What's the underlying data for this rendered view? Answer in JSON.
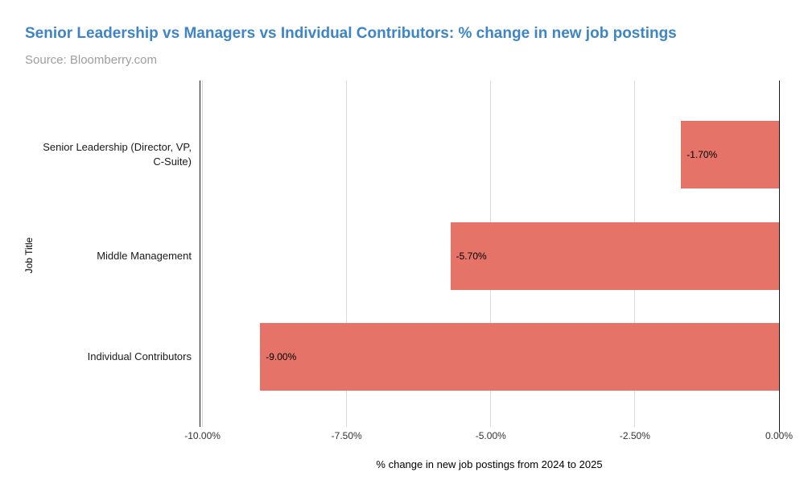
{
  "chart_data": {
    "type": "bar",
    "orientation": "horizontal",
    "title": "Senior Leadership vs Managers vs Individual Contributors: % change in new job postings",
    "subtitle": "Source: Bloomberry.com",
    "categories": [
      "Senior Leadership (Director, VP, C-Suite)",
      "Middle Management",
      "Individual Contributors"
    ],
    "values": [
      -1.7,
      -5.7,
      -9.0
    ],
    "value_labels": [
      "-1.70%",
      "-5.70%",
      "-9.00%"
    ],
    "xlabel": "% change in new job postings from 2024 to 2025",
    "ylabel": "Job Title",
    "xlim": [
      -10.05,
      0
    ],
    "x_ticks": [
      -10,
      -7.5,
      -5,
      -2.5,
      0
    ],
    "x_tick_labels": [
      "-10.00%",
      "-7.50%",
      "-5.00%",
      "-2.50%",
      "0.00%"
    ],
    "grid": true,
    "legend": "none"
  },
  "theme": {
    "title_color": "#3d85c6",
    "subtitle_color": "#9e9e9e",
    "bar_color": "#e57368",
    "gridline_color": "#d9d9d9",
    "axis_color": "#1a1a1a"
  }
}
